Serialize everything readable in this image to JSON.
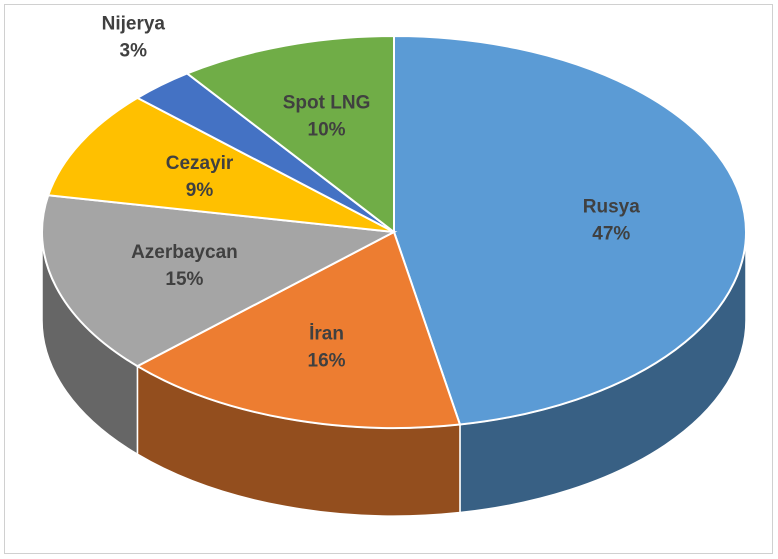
{
  "chart_data": {
    "type": "pie",
    "categories": [
      "Rusya",
      "İran",
      "Azerbaycan",
      "Cezayir",
      "Nijerya",
      "Spot LNG"
    ],
    "values": [
      47,
      16,
      15,
      9,
      3,
      10
    ],
    "value_labels": [
      "47%",
      "16%",
      "15%",
      "9%",
      "3%",
      "10%"
    ],
    "colors": [
      "#5b9bd5",
      "#ed7d31",
      "#a5a5a5",
      "#ffc000",
      "#4472c4",
      "#70ad47"
    ]
  }
}
